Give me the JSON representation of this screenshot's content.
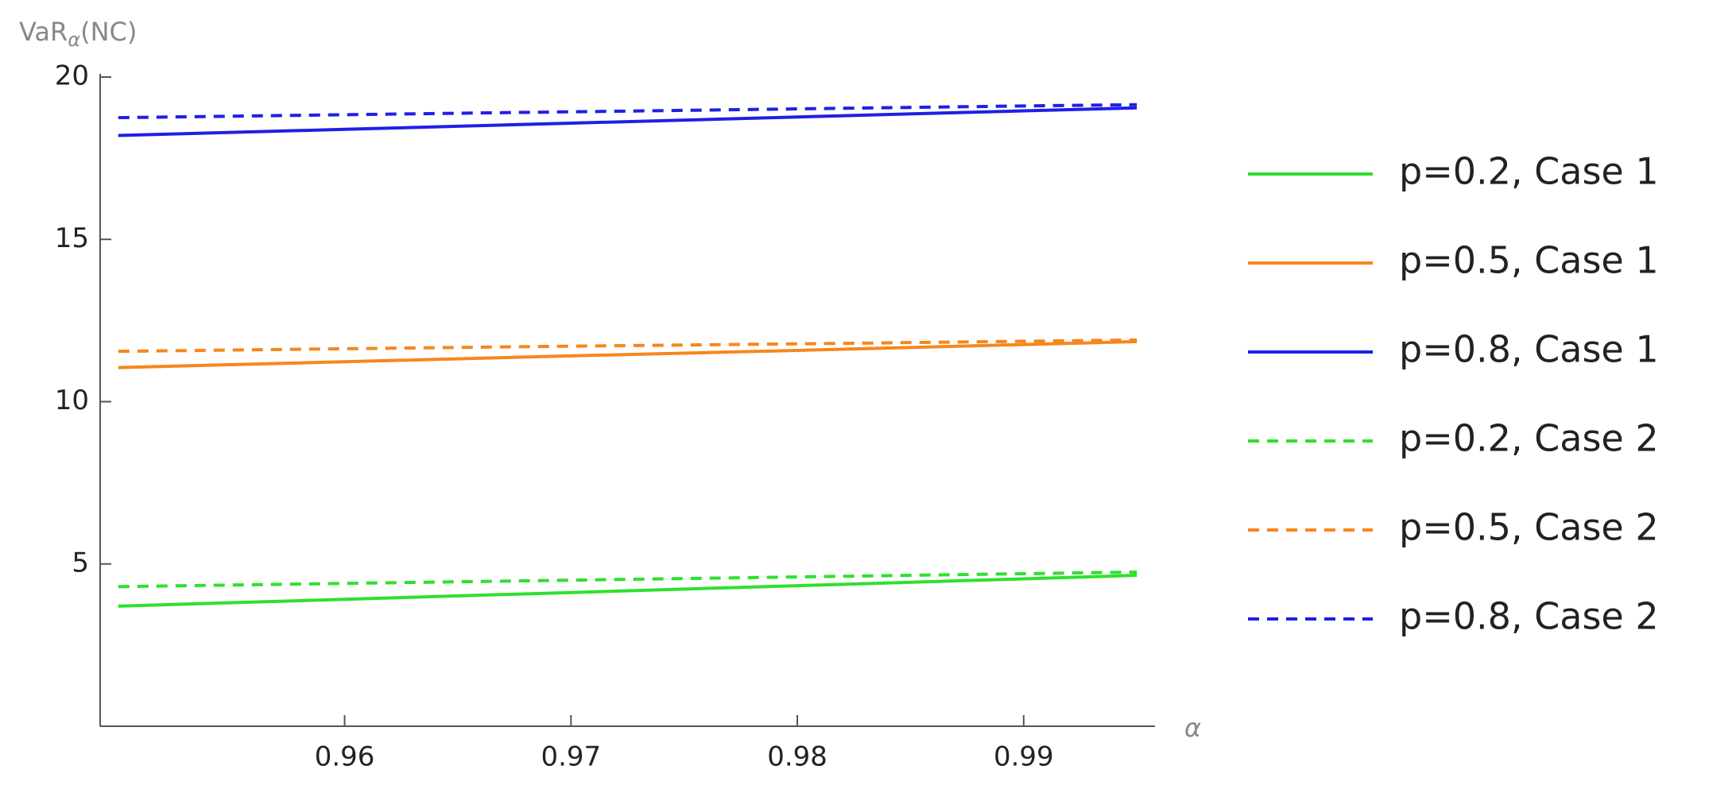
{
  "chart_data": {
    "type": "line",
    "ylabel": [
      "VaR",
      "α",
      "(NC)"
    ],
    "xlabel": "α",
    "x": [
      0.95,
      0.96,
      0.97,
      0.98,
      0.99,
      0.995
    ],
    "xlim": [
      0.9492,
      0.9958
    ],
    "ylim": [
      0,
      20
    ],
    "xticks": [
      0.96,
      0.97,
      0.98,
      0.99
    ],
    "yticks": [
      5,
      10,
      15,
      20
    ],
    "series": [
      {
        "name": "p=0.2, Case 1",
        "color": "#2ee02e",
        "linestyle": "solid",
        "values": [
          3.7,
          3.91,
          4.12,
          4.33,
          4.54,
          4.65
        ]
      },
      {
        "name": "p=0.5, Case 1",
        "color": "#f7861b",
        "linestyle": "solid",
        "values": [
          11.05,
          11.23,
          11.41,
          11.58,
          11.76,
          11.85
        ]
      },
      {
        "name": "p=0.8, Case 1",
        "color": "#1f1fe6",
        "linestyle": "solid",
        "values": [
          18.2,
          18.39,
          18.58,
          18.77,
          18.96,
          19.05
        ]
      },
      {
        "name": "p=0.2, Case 2",
        "color": "#2ee02e",
        "linestyle": "dashed",
        "values": [
          4.3,
          4.4,
          4.5,
          4.6,
          4.7,
          4.75
        ]
      },
      {
        "name": "p=0.5, Case 2",
        "color": "#f7861b",
        "linestyle": "dashed",
        "values": [
          11.55,
          11.63,
          11.71,
          11.78,
          11.86,
          11.9
        ]
      },
      {
        "name": "p=0.8, Case 2",
        "color": "#1f1fe6",
        "linestyle": "dashed",
        "values": [
          18.75,
          18.84,
          18.93,
          19.02,
          19.11,
          19.15
        ]
      }
    ]
  }
}
